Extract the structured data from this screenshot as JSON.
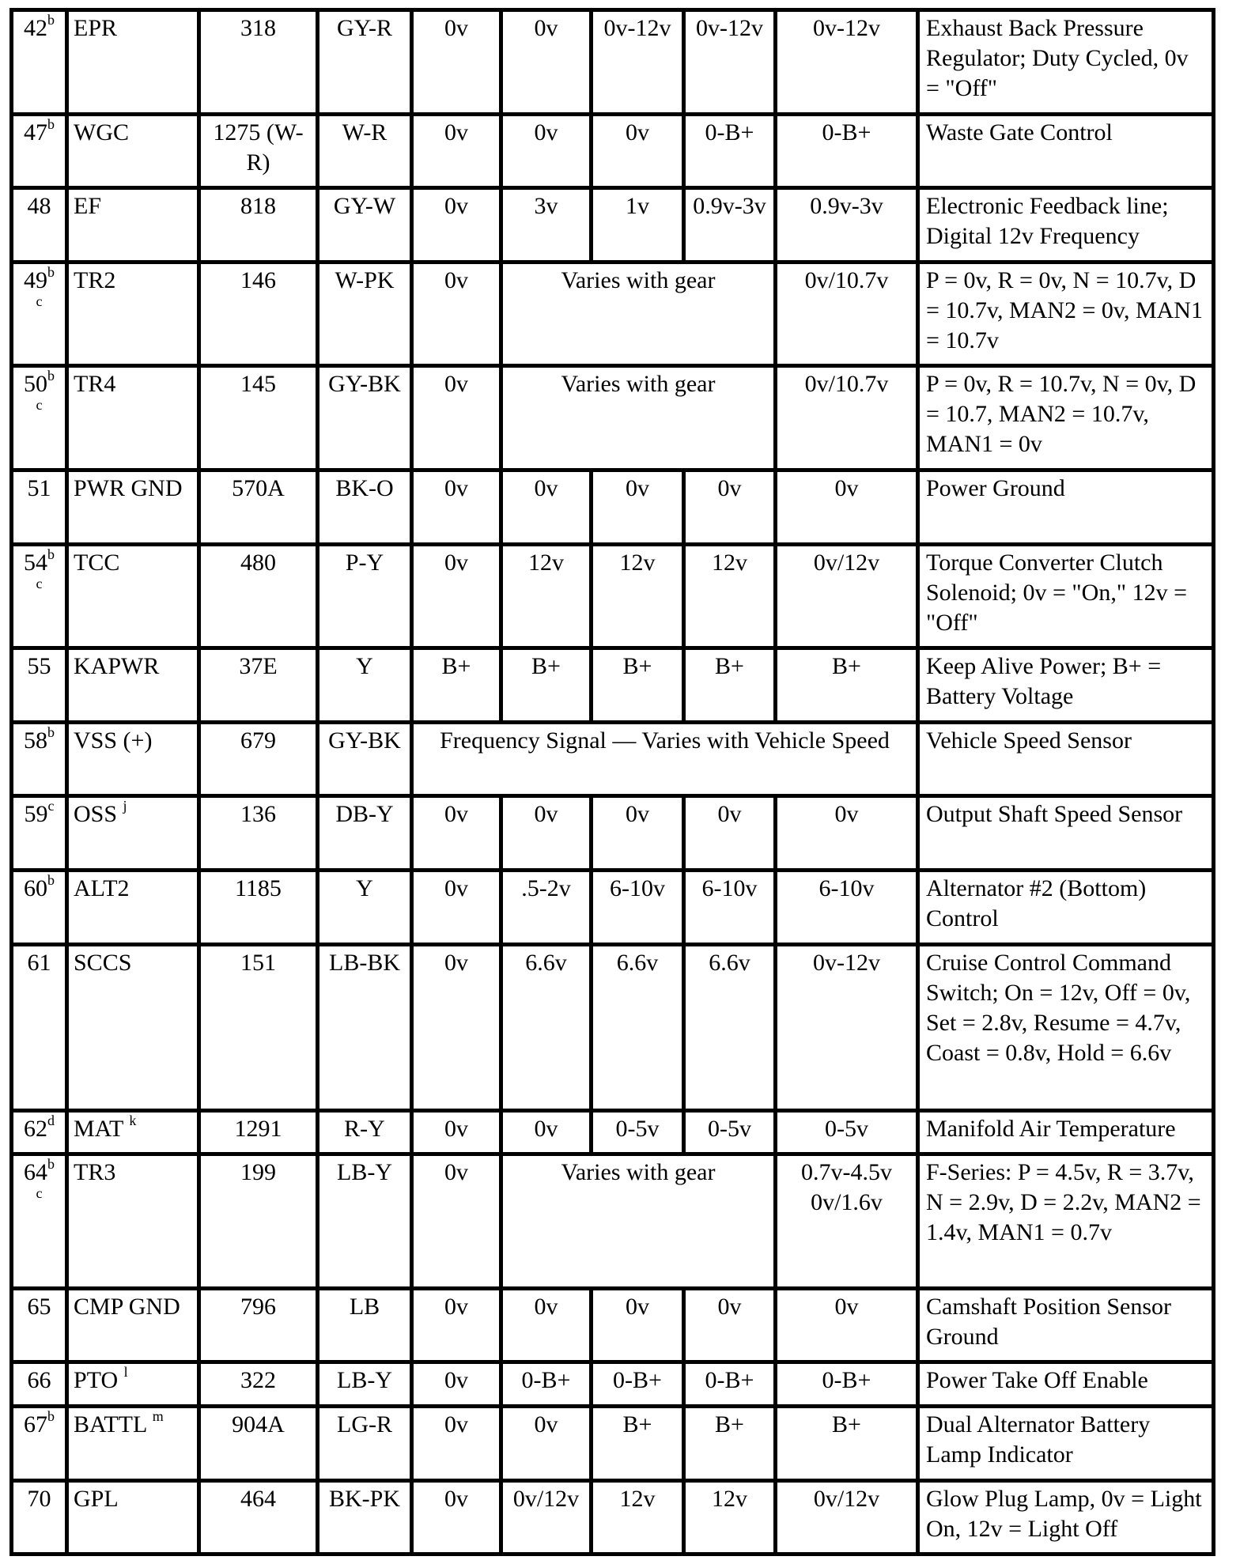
{
  "rows": [
    {
      "pin": "42",
      "pin_sup": "b",
      "name": "EPR",
      "circuit": "318",
      "color": "GY-R",
      "cells": [
        {
          "t": "0v"
        },
        {
          "t": "0v"
        },
        {
          "t": "0v-12v"
        },
        {
          "t": "0v-12v"
        },
        {
          "t": "0v-12v"
        }
      ],
      "desc": "Exhaust Back Pressure Regulator; Duty Cycled, 0v = \"Off\""
    },
    {
      "pin": "47",
      "pin_sup": "b",
      "name": "WGC",
      "circuit": "1275 (W-R)",
      "color": "W-R",
      "cells": [
        {
          "t": "0v"
        },
        {
          "t": "0v"
        },
        {
          "t": "0v"
        },
        {
          "t": "0-B+"
        },
        {
          "t": "0-B+"
        }
      ],
      "desc": "Waste Gate Control"
    },
    {
      "pin": "48",
      "name": "EF",
      "circuit": "818",
      "color": "GY-W",
      "cells": [
        {
          "t": "0v"
        },
        {
          "t": "3v"
        },
        {
          "t": "1v"
        },
        {
          "t": "0.9v-3v"
        },
        {
          "t": "0.9v-3v"
        }
      ],
      "desc": "Electronic Feedback line; Digital 12v Frequency"
    },
    {
      "pin": "49",
      "pin_sup": "b",
      "pin_sub": "c",
      "name": "TR2",
      "circuit": "146",
      "color": "W-PK",
      "cells": [
        {
          "t": "0v"
        },
        {
          "t": "Varies with gear",
          "span": 3
        },
        {
          "t": "0v/10.7v"
        }
      ],
      "desc": "P = 0v, R = 0v, N = 10.7v, D = 10.7v, MAN2 = 0v, MAN1 = 10.7v"
    },
    {
      "pin": "50",
      "pin_sup": "b",
      "pin_sub": "c",
      "name": "TR4",
      "circuit": "145",
      "color": "GY-BK",
      "cells": [
        {
          "t": "0v"
        },
        {
          "t": "Varies with gear",
          "span": 3
        },
        {
          "t": "0v/10.7v"
        }
      ],
      "desc": "P = 0v, R = 10.7v, N = 0v, D = 10.7, MAN2 = 10.7v, MAN1 = 0v"
    },
    {
      "pin": "51",
      "name": "PWR GND",
      "circuit": "570A",
      "color": "BK-O",
      "cells": [
        {
          "t": "0v"
        },
        {
          "t": "0v"
        },
        {
          "t": "0v"
        },
        {
          "t": "0v"
        },
        {
          "t": "0v"
        }
      ],
      "desc": "Power Ground"
    },
    {
      "pin": "54",
      "pin_sup": "b",
      "pin_sub": "c",
      "name": "TCC",
      "circuit": "480",
      "color": "P-Y",
      "cells": [
        {
          "t": "0v"
        },
        {
          "t": "12v"
        },
        {
          "t": "12v"
        },
        {
          "t": "12v"
        },
        {
          "t": "0v/12v"
        }
      ],
      "desc": "Torque Converter Clutch Solenoid; 0v = \"On,\" 12v = \"Off\""
    },
    {
      "pin": "55",
      "name": "KAPWR",
      "circuit": "37E",
      "color": "Y",
      "cells": [
        {
          "t": "B+"
        },
        {
          "t": "B+"
        },
        {
          "t": "B+"
        },
        {
          "t": "B+"
        },
        {
          "t": "B+"
        }
      ],
      "desc": "Keep Alive Power; B+ = Battery Voltage"
    },
    {
      "pin": "58",
      "pin_sup": "b",
      "name": "VSS (+)",
      "circuit": "679",
      "color": "GY-BK",
      "cells": [
        {
          "t": "Frequency Signal — Varies with Vehicle Speed",
          "span": 5
        }
      ],
      "desc": "Vehicle Speed Sensor"
    },
    {
      "pin": "59",
      "pin_sup": "c",
      "name": "OSS",
      "name_sup": "j",
      "circuit": "136",
      "color": "DB-Y",
      "cells": [
        {
          "t": "0v"
        },
        {
          "t": "0v"
        },
        {
          "t": "0v"
        },
        {
          "t": "0v"
        },
        {
          "t": "0v"
        }
      ],
      "desc": "Output Shaft Speed Sensor"
    },
    {
      "pin": "60",
      "pin_sup": "b",
      "name": "ALT2",
      "circuit": "1185",
      "color": "Y",
      "cells": [
        {
          "t": "0v"
        },
        {
          "t": ".5-2v"
        },
        {
          "t": "6-10v"
        },
        {
          "t": "6-10v"
        },
        {
          "t": "6-10v"
        }
      ],
      "desc": "Alternator #2 (Bottom) Control"
    },
    {
      "pin": "61",
      "name": "SCCS",
      "circuit": "151",
      "color": "LB-BK",
      "cells": [
        {
          "t": "0v"
        },
        {
          "t": "6.6v"
        },
        {
          "t": "6.6v"
        },
        {
          "t": "6.6v"
        },
        {
          "t": "0v-12v"
        }
      ],
      "desc": "Cruise Control Command Switch; On = 12v, Off = 0v, Set = 2.8v, Resume = 4.7v, Coast = 0.8v, Hold = 6.6v"
    },
    {
      "pin": "62",
      "pin_sup": "d",
      "name": "MAT",
      "name_sup": "k",
      "circuit": "1291",
      "color": "R-Y",
      "cells": [
        {
          "t": "0v"
        },
        {
          "t": "0v"
        },
        {
          "t": "0-5v"
        },
        {
          "t": "0-5v"
        },
        {
          "t": "0-5v"
        }
      ],
      "desc": "Manifold Air Temperature"
    },
    {
      "pin": "64",
      "pin_sup": "b",
      "pin_sub": "c",
      "name": "TR3",
      "circuit": "199",
      "color": "LB-Y",
      "cells": [
        {
          "t": "0v"
        },
        {
          "t": "Varies with gear",
          "span": 3
        },
        {
          "t": "0.7v-4.5v 0v/1.6v"
        }
      ],
      "desc": "F-Series: P = 4.5v, R = 3.7v, N = 2.9v, D = 2.2v, MAN2 = 1.4v, MAN1 = 0.7v"
    },
    {
      "pin": "65",
      "name": "CMP GND",
      "circuit": "796",
      "color": "LB",
      "cells": [
        {
          "t": "0v"
        },
        {
          "t": "0v"
        },
        {
          "t": "0v"
        },
        {
          "t": "0v"
        },
        {
          "t": "0v"
        }
      ],
      "desc": "Camshaft Position Sensor Ground"
    },
    {
      "pin": "66",
      "name": "PTO",
      "name_sup": "l",
      "circuit": "322",
      "color": "LB-Y",
      "cells": [
        {
          "t": "0v"
        },
        {
          "t": "0-B+"
        },
        {
          "t": "0-B+"
        },
        {
          "t": "0-B+"
        },
        {
          "t": "0-B+"
        }
      ],
      "desc": "Power Take Off Enable"
    },
    {
      "pin": "67",
      "pin_sup": "b",
      "name": "BATTL",
      "name_sup": "m",
      "circuit": "904A",
      "color": "LG-R",
      "cells": [
        {
          "t": "0v"
        },
        {
          "t": "0v"
        },
        {
          "t": "B+"
        },
        {
          "t": "B+"
        },
        {
          "t": "B+"
        }
      ],
      "desc": "Dual Alternator Battery Lamp Indicator"
    },
    {
      "pin": "70",
      "name": "GPL",
      "circuit": "464",
      "color": "BK-PK",
      "cells": [
        {
          "t": "0v"
        },
        {
          "t": "0v/12v"
        },
        {
          "t": "12v"
        },
        {
          "t": "12v"
        },
        {
          "t": "0v/12v"
        }
      ],
      "desc": "Glow Plug Lamp, 0v = Light On, 12v = Light Off"
    }
  ]
}
